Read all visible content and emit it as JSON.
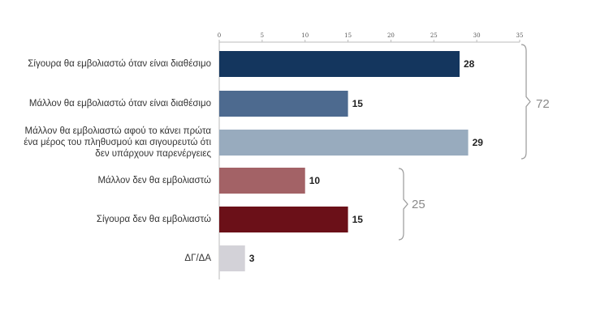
{
  "chart_data": {
    "type": "bar",
    "orientation": "horizontal",
    "categories": [
      "Σίγουρα θα εμβολιαστώ όταν είναι διαθέσιμο",
      "Μάλλον θα εμβολιαστώ όταν είναι διαθέσιμο",
      "Μάλλον θα εμβολιαστώ αφού το κάνει πρώτα ένα μέρος του πληθυσμού και σιγουρευτώ ότι δεν υπάρχουν παρενέργειες",
      "Μάλλον δεν θα εμβολιαστώ",
      "Σίγουρα δεν θα εμβολιαστώ",
      "ΔΓ/ΔΑ"
    ],
    "values": [
      28,
      15,
      29,
      10,
      15,
      3
    ],
    "colors": [
      "#14365e",
      "#4d6a8f",
      "#98abbe",
      "#a36266",
      "#6b1018",
      "#d3d2d8"
    ],
    "xlim": [
      0,
      35
    ],
    "xticks": [
      "0",
      "5",
      "10",
      "15",
      "20",
      "25",
      "30",
      "35"
    ],
    "axis_position": "top",
    "grid": false,
    "legend": "none",
    "groups": [
      {
        "label": "72",
        "from": 0,
        "to": 2
      },
      {
        "label": "25",
        "from": 3,
        "to": 4
      }
    ]
  }
}
